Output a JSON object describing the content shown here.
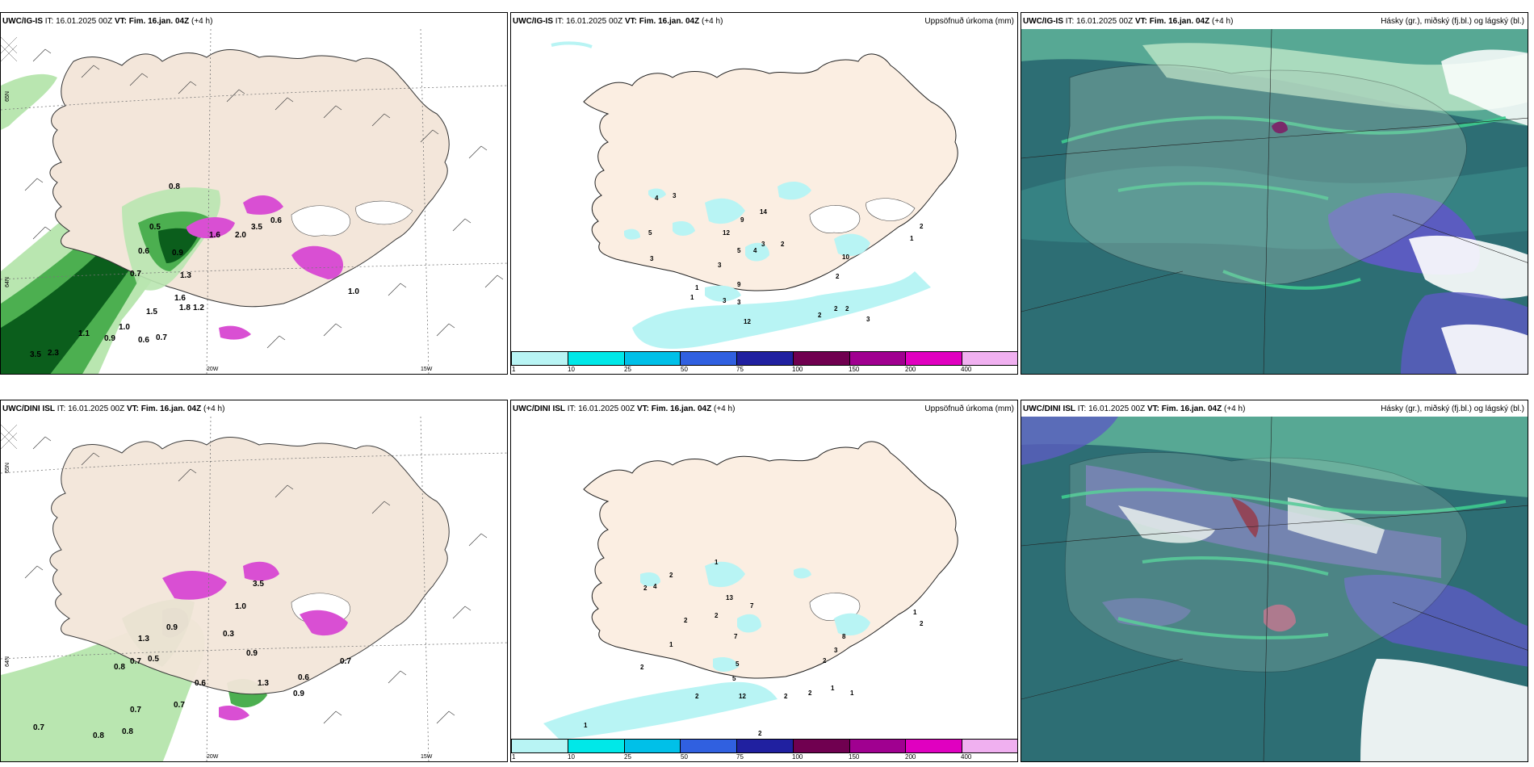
{
  "rows": [
    {
      "model": "UWC/IG-IS",
      "it_label": "IT:",
      "it_value": "16.01.2025 00Z",
      "vt_label": "VT:",
      "vt_value": "Fim. 16.jan. 04Z",
      "lead": "(+4 h)",
      "middle_title": "Uppsöfnuð úrkoma (mm)",
      "right_title": "Hásky (gr.), miðský (fj.bl.) og lágský (bl.)",
      "left_labels": [
        "0.8",
        "0.5",
        "0.6",
        "0.9",
        "0.7",
        "1.3",
        "1.6",
        "1.8",
        "1.2",
        "1.5",
        "1.1",
        "0.9",
        "0.6",
        "0.7",
        "3.5",
        "2.3",
        "1.0",
        "1.6",
        "2.0",
        "3.5",
        "0.6",
        "1.0"
      ],
      "precip_labels": [
        "4",
        "3",
        "5",
        "3",
        "12",
        "9",
        "14",
        "5",
        "4",
        "3",
        "2",
        "10",
        "2",
        "3",
        "9",
        "3",
        "3",
        "1",
        "1",
        "2",
        "2",
        "2",
        "1",
        "2",
        "3",
        "12"
      ],
      "grid_labels": [
        "65N",
        "64N",
        "20W",
        "15W"
      ]
    },
    {
      "model": "UWC/DINI ISL",
      "it_label": "IT:",
      "it_value": "16.01.2025 00Z",
      "vt_label": "VT:",
      "vt_value": "Fim. 16.jan. 04Z",
      "lead": "(+4 h)",
      "middle_title": "Uppsöfnuð úrkoma (mm)",
      "right_title": "Hásky (gr.), miðský (fj.bl.) og lágský (bl.)",
      "left_labels": [
        "1.3",
        "0.9",
        "0.8",
        "0.7",
        "0.5",
        "0.3",
        "0.9",
        "0.6",
        "0.9",
        "0.6",
        "0.7",
        "0.7",
        "0.8",
        "0.8",
        "0.7",
        "1.3",
        "1.0",
        "3.5",
        "0.7"
      ],
      "precip_labels": [
        "2",
        "2",
        "4",
        "1",
        "13",
        "7",
        "2",
        "2",
        "7",
        "5",
        "1",
        "3",
        "8",
        "2",
        "5",
        "2",
        "2",
        "2",
        "1",
        "2",
        "1",
        "1",
        "2",
        "1",
        "2",
        "12"
      ],
      "grid_labels": [
        "65N",
        "64N",
        "20W",
        "15W"
      ]
    }
  ],
  "legend": {
    "ticks": [
      "1",
      "10",
      "25",
      "50",
      "75",
      "100",
      "150",
      "200",
      "400"
    ],
    "colors": [
      "#b8f4f4",
      "#00e8e8",
      "#00c0e8",
      "#3060e0",
      "#2020a0",
      "#700050",
      "#a00090",
      "#e000c0",
      "#f0b0f0"
    ]
  },
  "colors": {
    "land": "#fbeee2",
    "sea": "#ffffff",
    "green_light": "#b9e6b0",
    "green_mid": "#4caf50",
    "green_dark": "#0b5e1c",
    "magenta": "#d94fd3",
    "cyan_precip": "#b8f4f4",
    "cloud_sea": "#2a6f74",
    "cloud_green": "#3ecc8f",
    "cloud_blue": "#5b5cc0"
  }
}
